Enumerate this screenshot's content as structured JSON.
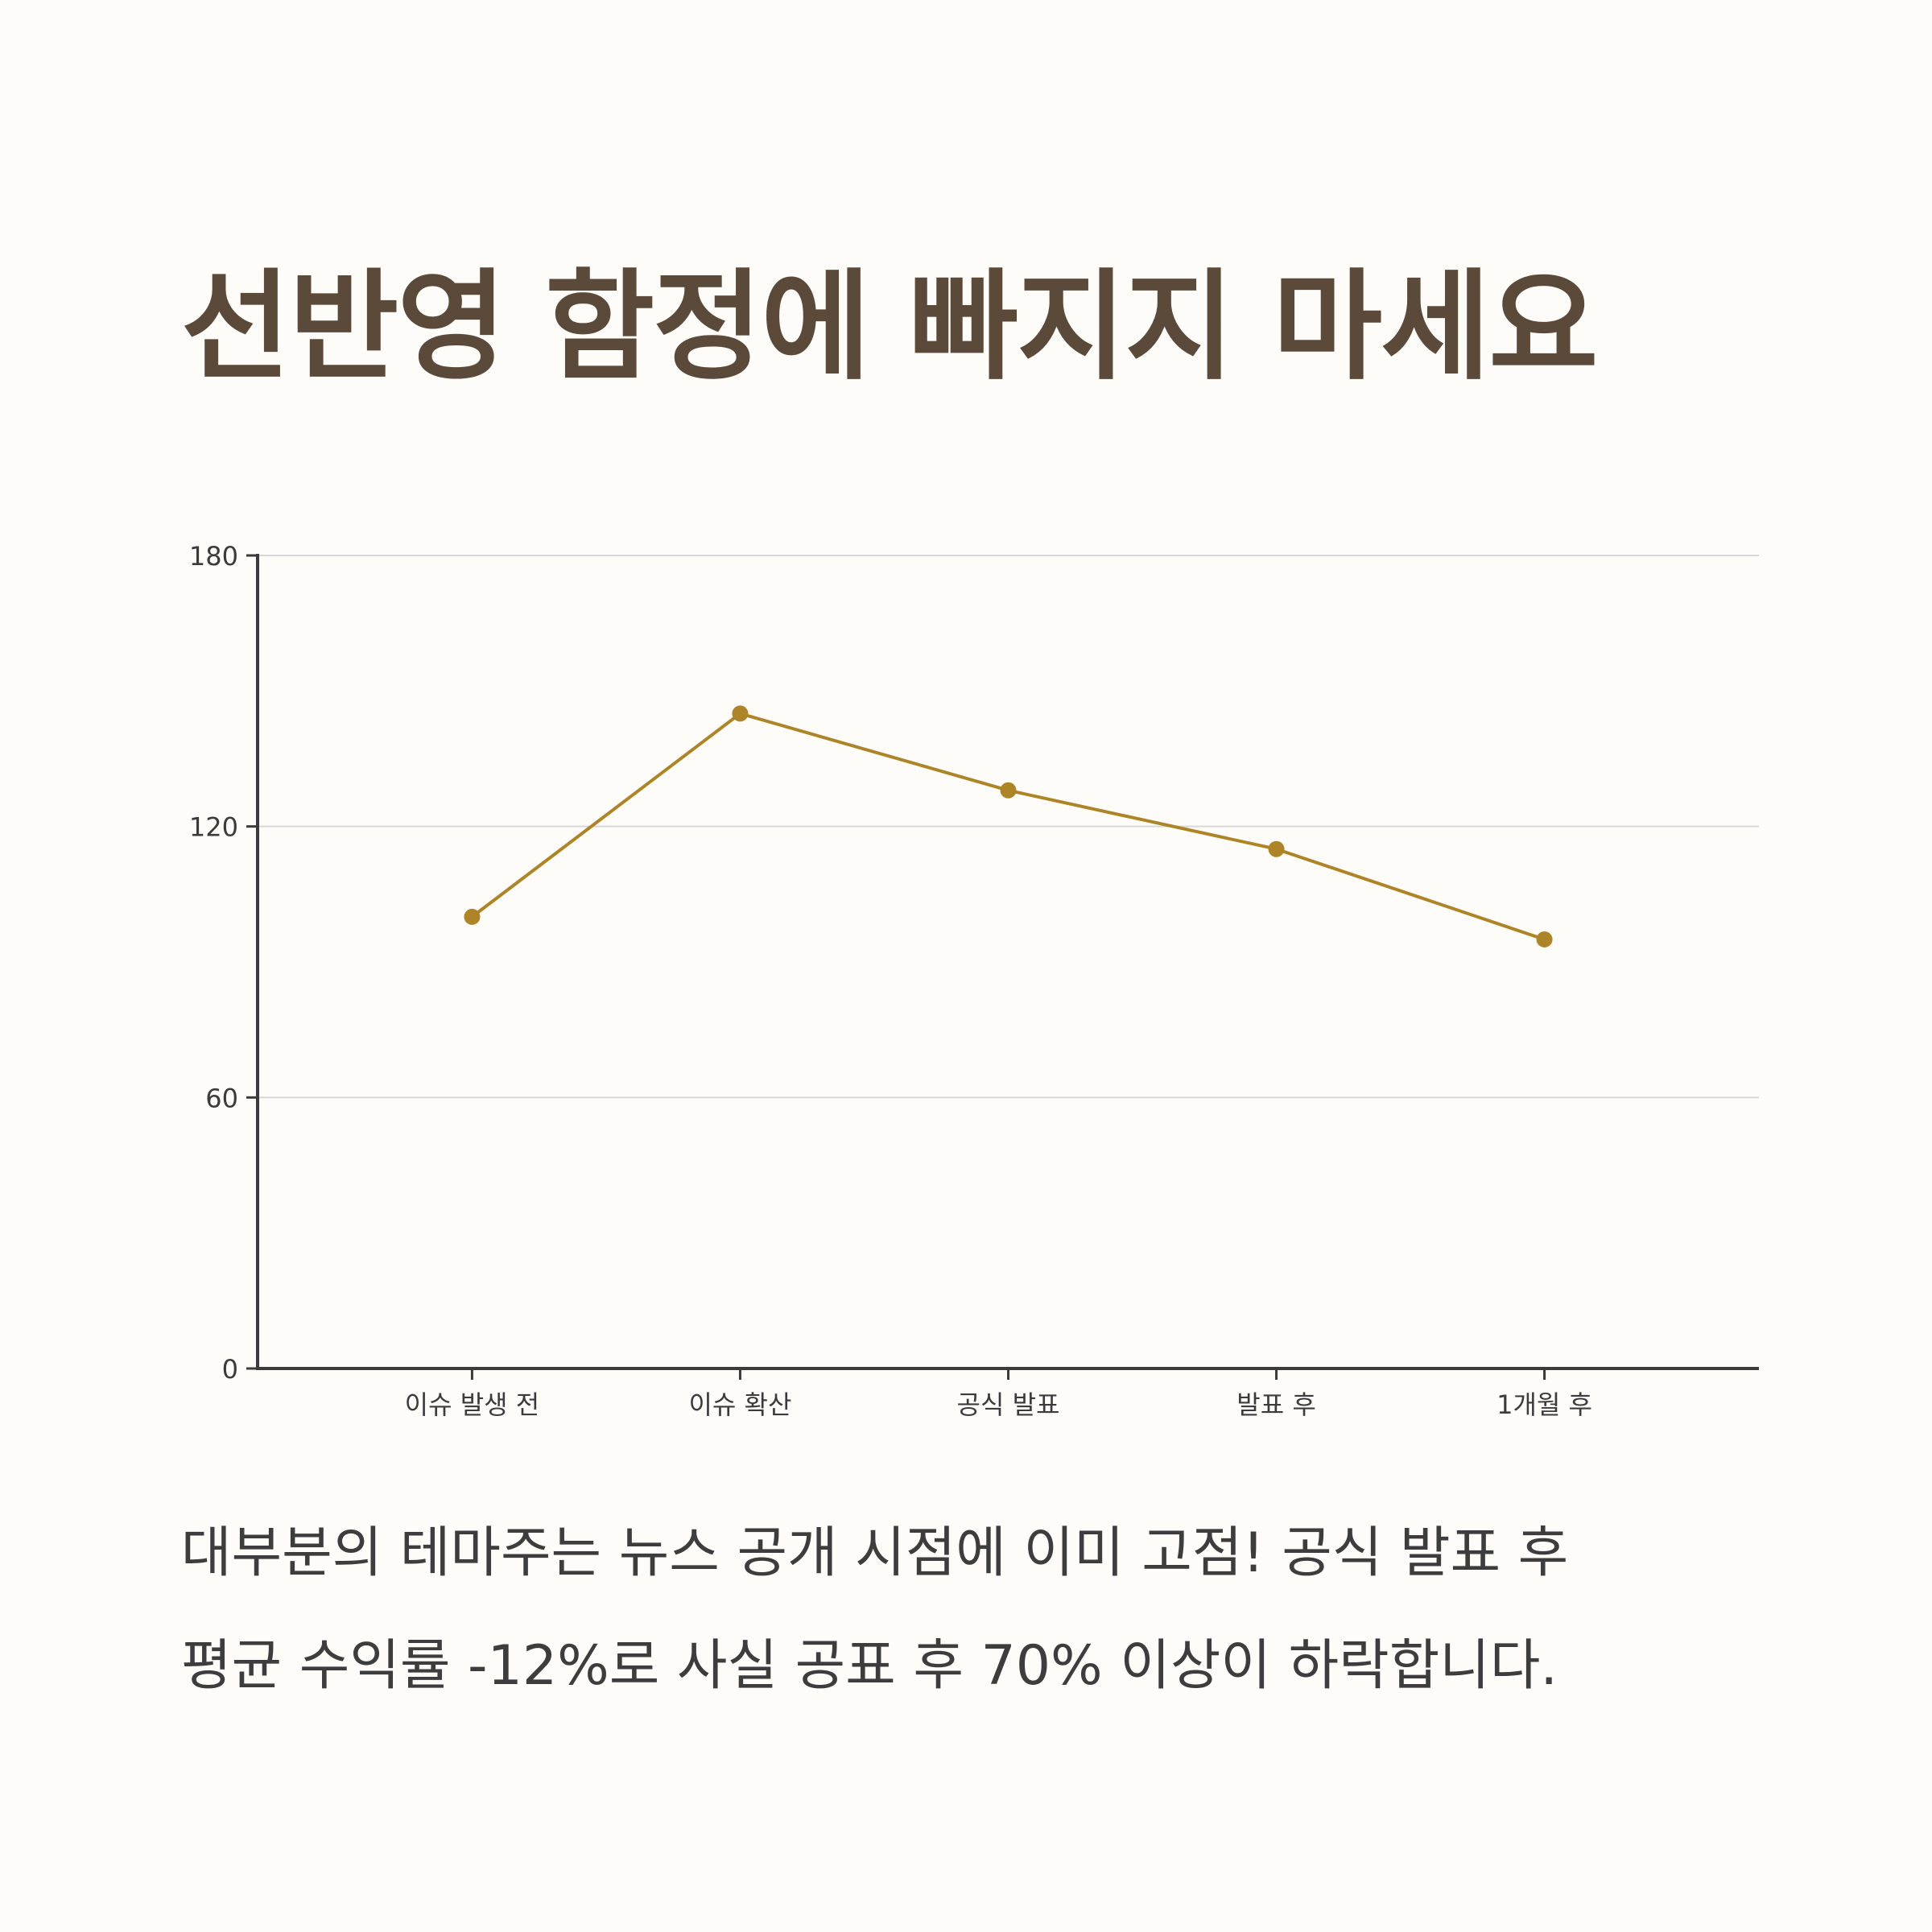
{
  "title": "선반영 함정에 빠지지 마세요",
  "caption": {
    "line1": "대부분의 테마주는 뉴스 공개 시점에 이미 고점! 공식 발표 후",
    "line2": "평균 수익률 -12%로 사실 공표 후 70% 이상이 하락합니다."
  },
  "colors": {
    "background": "#fdfcf8",
    "title": "#5b4a3a",
    "line": "#ad8528",
    "axis": "#3b3b3b",
    "grid": "#d8d8d8"
  },
  "chart_data": {
    "type": "line",
    "categories": [
      "이슈 발생 전",
      "이슈 확산",
      "공식 발표",
      "발표 후",
      "1개월 후"
    ],
    "series": [
      {
        "values": [
          100,
          145,
          128,
          115,
          95
        ]
      }
    ],
    "yticks": [
      "0",
      "60",
      "120",
      "180"
    ],
    "ylim": [
      0,
      180
    ],
    "grid": true,
    "legend": "none"
  }
}
